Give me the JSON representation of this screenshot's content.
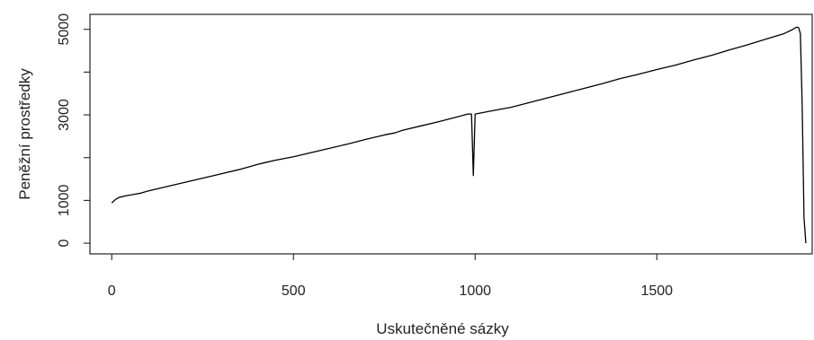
{
  "chart_data": {
    "type": "line",
    "title": "",
    "xlabel": "Uskutečněné sázky",
    "ylabel": "Peněžní prostředky",
    "xlim": [
      -60,
      1930
    ],
    "ylim": [
      -250,
      5350
    ],
    "x_ticks": [
      0,
      500,
      1000,
      1500
    ],
    "x_tick_labels": [
      "0",
      "500",
      "1000",
      "1500"
    ],
    "y_ticks": [
      0,
      1000,
      3000,
      5000
    ],
    "y_tick_labels": [
      "0",
      "1000",
      "3000",
      "5000"
    ],
    "y_minor_ticks": [
      2000,
      4000
    ],
    "grid": false,
    "legend": "none",
    "line_color": "#000000",
    "series": [
      {
        "name": "",
        "x": [
          0,
          10,
          20,
          40,
          60,
          80,
          100,
          150,
          200,
          250,
          300,
          350,
          380,
          400,
          420,
          450,
          500,
          550,
          600,
          650,
          700,
          750,
          780,
          800,
          850,
          900,
          950,
          980,
          990,
          995,
          1000,
          1050,
          1100,
          1150,
          1200,
          1250,
          1300,
          1350,
          1400,
          1450,
          1500,
          1550,
          1600,
          1650,
          1700,
          1750,
          1800,
          1850,
          1870,
          1880,
          1885,
          1890,
          1895,
          1900,
          1905,
          1910
        ],
        "y": [
          940,
          1020,
          1070,
          1110,
          1140,
          1170,
          1220,
          1320,
          1420,
          1520,
          1620,
          1720,
          1790,
          1840,
          1880,
          1940,
          2020,
          2120,
          2220,
          2320,
          2430,
          2530,
          2580,
          2640,
          2740,
          2840,
          2950,
          3020,
          3020,
          1580,
          3020,
          3100,
          3180,
          3290,
          3400,
          3510,
          3620,
          3730,
          3850,
          3950,
          4060,
          4160,
          4280,
          4390,
          4520,
          4640,
          4770,
          4900,
          4980,
          5030,
          5050,
          5040,
          4900,
          3200,
          600,
          0
        ]
      }
    ]
  }
}
